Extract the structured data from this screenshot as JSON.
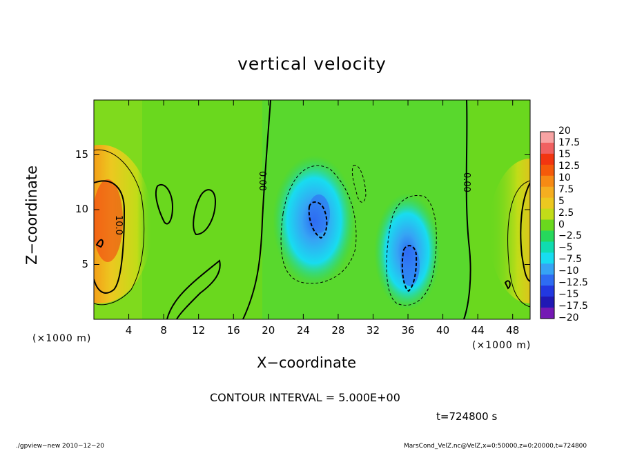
{
  "title": "vertical velocity",
  "xlabel": "X−coordinate",
  "ylabel": "Z−coordinate",
  "xunit_left": "(×1000 m)",
  "xunit_right": "(×1000 m)",
  "contour_interval": "CONTOUR INTERVAL = 5.000E+00",
  "time_label": "t=724800 s",
  "footer_left": "./gpview−new   2010−12−20",
  "footer_right": "MarsCond_VelZ.nc@VelZ,x=0:50000,z=0:20000,t=724800",
  "chart_data": {
    "type": "heatmap",
    "title": "vertical velocity",
    "xlabel": "X−coordinate",
    "ylabel": "Z−coordinate",
    "x_unit": "(×1000 m)",
    "xlim": [
      0,
      50
    ],
    "ylim": [
      0,
      20
    ],
    "x_ticks": [
      4,
      8,
      12,
      16,
      20,
      24,
      28,
      32,
      36,
      40,
      44,
      48
    ],
    "y_ticks": [
      5,
      10,
      15
    ],
    "contour_labels": [
      "0.00",
      "0.00",
      "10.0"
    ],
    "colorbar": {
      "labels": [
        "20",
        "17.5",
        "15",
        "12.5",
        "10",
        "7.5",
        "5",
        "2.5",
        "0",
        "−2.5",
        "−5",
        "−7.5",
        "−10",
        "−12.5",
        "−15",
        "−17.5",
        "−20"
      ],
      "values": [
        20,
        17.5,
        15,
        12.5,
        10,
        7.5,
        5,
        2.5,
        0,
        -2.5,
        -5,
        -7.5,
        -10,
        -12.5,
        -15,
        -17.5,
        -20
      ],
      "colors": [
        "#f7a3a3",
        "#f06060",
        "#f23510",
        "#f55a0a",
        "#f78a14",
        "#f5ae20",
        "#ecc820",
        "#c2dc18",
        "#6ad81e",
        "#26d85c",
        "#10dcb0",
        "#18dcf0",
        "#36a4f4",
        "#2e6cf2",
        "#2238e0",
        "#2018b4",
        "#7418b4"
      ]
    },
    "features": [
      {
        "type": "updraft",
        "x": 1.0,
        "z": 7.5,
        "peak": 15
      },
      {
        "type": "updraft",
        "x": 48.5,
        "z": 7.0,
        "peak": 12
      },
      {
        "type": "downdraft",
        "x": 25.5,
        "z": 9.0,
        "peak": -10
      },
      {
        "type": "downdraft",
        "x": 36.0,
        "z": 5.0,
        "peak": -10
      }
    ]
  }
}
